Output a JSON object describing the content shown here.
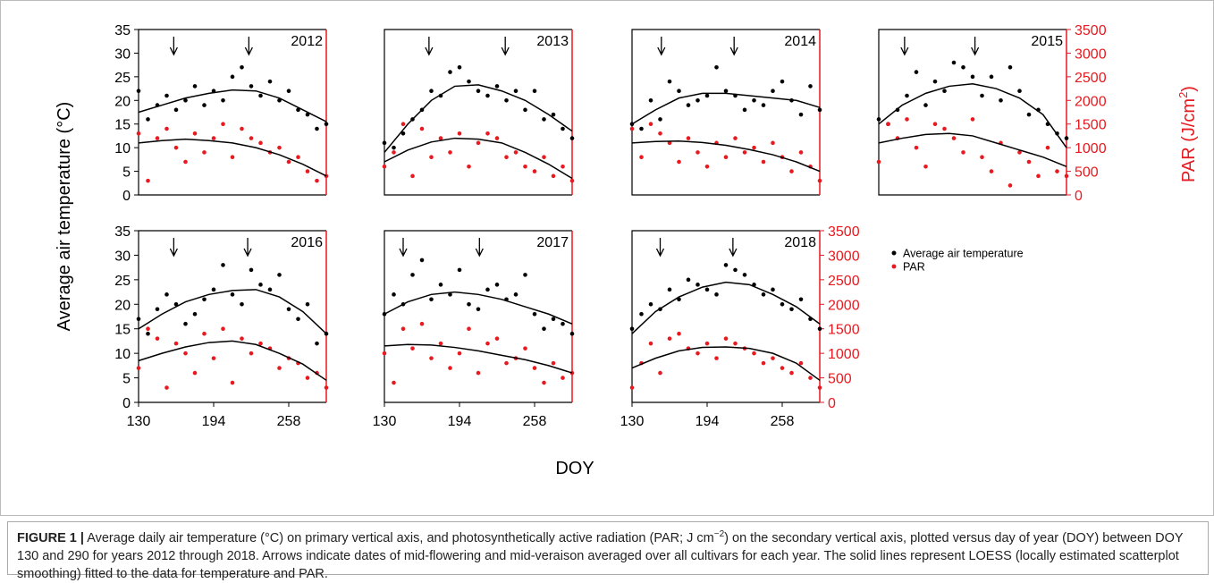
{
  "chart_data": [
    {
      "type": "scatter",
      "title": "2012",
      "xlim": [
        130,
        290
      ],
      "ylim": [
        0,
        35
      ],
      "y2lim": [
        0,
        3500
      ],
      "yticks": [
        0,
        5,
        10,
        15,
        20,
        25,
        30,
        35
      ],
      "x": [
        130,
        138,
        146,
        154,
        162,
        170,
        178,
        186,
        194,
        202,
        210,
        218,
        226,
        234,
        242,
        250,
        258,
        266,
        274,
        282,
        290
      ],
      "series": [
        {
          "name": "Average air temperature",
          "color": "#000000",
          "values": [
            22,
            16,
            19,
            21,
            18,
            20,
            23,
            19,
            22,
            20,
            25,
            27,
            23,
            21,
            24,
            20,
            22,
            18,
            17,
            14,
            15
          ]
        },
        {
          "name": "PAR",
          "color": "#e8191f",
          "axis": "y2",
          "values": [
            1300,
            300,
            1200,
            1400,
            1000,
            700,
            1300,
            900,
            1200,
            1500,
            800,
            1400,
            1200,
            1100,
            900,
            1000,
            700,
            800,
            500,
            300,
            400
          ]
        }
      ],
      "loess": {
        "x": [
          130,
          150,
          170,
          190,
          210,
          230,
          250,
          270,
          290
        ],
        "temperature": [
          17.5,
          19,
          20.5,
          21.5,
          22.2,
          22,
          20.5,
          18,
          15.5
        ],
        "par": [
          1100,
          1150,
          1180,
          1150,
          1100,
          1000,
          850,
          650,
          400
        ]
      },
      "arrows": [
        160,
        224
      ]
    },
    {
      "type": "scatter",
      "title": "2013",
      "xlim": [
        130,
        290
      ],
      "ylim": [
        0,
        35
      ],
      "y2lim": [
        0,
        3500
      ],
      "x": [
        130,
        138,
        146,
        154,
        162,
        170,
        178,
        186,
        194,
        202,
        210,
        218,
        226,
        234,
        242,
        250,
        258,
        266,
        274,
        282,
        290
      ],
      "series": [
        {
          "name": "Average air temperature",
          "color": "#000000",
          "values": [
            11,
            10,
            13,
            16,
            18,
            22,
            21,
            26,
            27,
            24,
            22,
            21,
            23,
            20,
            22,
            18,
            22,
            16,
            17,
            14,
            12
          ]
        },
        {
          "name": "PAR",
          "color": "#e8191f",
          "axis": "y2",
          "values": [
            600,
            900,
            1500,
            400,
            1400,
            800,
            1200,
            900,
            1300,
            600,
            1100,
            1300,
            1200,
            800,
            900,
            600,
            500,
            800,
            400,
            600,
            300
          ]
        }
      ],
      "loess": {
        "x": [
          130,
          150,
          170,
          190,
          210,
          230,
          250,
          270,
          290
        ],
        "temperature": [
          9,
          15,
          20,
          23,
          23.3,
          22,
          20,
          17,
          13.5
        ],
        "par": [
          700,
          950,
          1120,
          1200,
          1180,
          1100,
          900,
          650,
          350
        ]
      },
      "arrows": [
        168,
        233
      ]
    },
    {
      "type": "scatter",
      "title": "2014",
      "xlim": [
        130,
        290
      ],
      "ylim": [
        0,
        35
      ],
      "y2lim": [
        0,
        3500
      ],
      "x": [
        130,
        138,
        146,
        154,
        162,
        170,
        178,
        186,
        194,
        202,
        210,
        218,
        226,
        234,
        242,
        250,
        258,
        266,
        274,
        282,
        290
      ],
      "series": [
        {
          "name": "Average air temperature",
          "color": "#000000",
          "values": [
            15,
            14,
            20,
            16,
            24,
            22,
            19,
            20,
            21,
            27,
            22,
            21,
            18,
            20,
            19,
            22,
            24,
            20,
            17,
            23,
            18
          ]
        },
        {
          "name": "PAR",
          "color": "#e8191f",
          "axis": "y2",
          "values": [
            1400,
            800,
            1500,
            1300,
            1100,
            700,
            1200,
            900,
            600,
            1100,
            800,
            1200,
            900,
            1000,
            700,
            1100,
            800,
            500,
            900,
            600,
            300
          ]
        }
      ],
      "loess": {
        "x": [
          130,
          150,
          170,
          190,
          210,
          230,
          250,
          270,
          290
        ],
        "temperature": [
          15,
          18,
          20.5,
          21.5,
          21.5,
          21,
          20.5,
          20,
          18.5
        ],
        "par": [
          1100,
          1130,
          1140,
          1110,
          1050,
          960,
          850,
          700,
          500
        ]
      },
      "arrows": [
        155,
        217
      ]
    },
    {
      "type": "scatter",
      "title": "2015",
      "xlim": [
        130,
        290
      ],
      "ylim": [
        0,
        35
      ],
      "y2lim": [
        0,
        3500
      ],
      "y2ticks": [
        0,
        500,
        1000,
        1500,
        2000,
        2500,
        3000,
        3500
      ],
      "x": [
        130,
        138,
        146,
        154,
        162,
        170,
        178,
        186,
        194,
        202,
        210,
        218,
        226,
        234,
        242,
        250,
        258,
        266,
        274,
        282,
        290
      ],
      "series": [
        {
          "name": "Average air temperature",
          "color": "#000000",
          "values": [
            16,
            15,
            18,
            21,
            26,
            19,
            24,
            22,
            28,
            27,
            25,
            21,
            25,
            20,
            27,
            22,
            17,
            18,
            15,
            13,
            12
          ]
        },
        {
          "name": "PAR",
          "color": "#e8191f",
          "axis": "y2",
          "values": [
            700,
            1500,
            1200,
            1600,
            1000,
            600,
            1500,
            1400,
            1200,
            900,
            1600,
            800,
            500,
            1100,
            200,
            900,
            700,
            400,
            1000,
            500,
            400
          ]
        }
      ],
      "loess": {
        "x": [
          130,
          150,
          170,
          190,
          210,
          230,
          250,
          270,
          290
        ],
        "temperature": [
          15,
          19,
          21.5,
          23,
          23.5,
          22.5,
          20.5,
          17,
          10
        ],
        "par": [
          1100,
          1200,
          1280,
          1300,
          1250,
          1100,
          950,
          800,
          600
        ]
      },
      "arrows": [
        152,
        212
      ]
    },
    {
      "type": "scatter",
      "title": "2016",
      "xlim": [
        130,
        290
      ],
      "ylim": [
        0,
        35
      ],
      "y2lim": [
        0,
        3500
      ],
      "yticks": [
        0,
        5,
        10,
        15,
        20,
        25,
        30,
        35
      ],
      "xticks": [
        130,
        194,
        258
      ],
      "x": [
        130,
        138,
        146,
        154,
        162,
        170,
        178,
        186,
        194,
        202,
        210,
        218,
        226,
        234,
        242,
        250,
        258,
        266,
        274,
        282,
        290
      ],
      "series": [
        {
          "name": "Average air temperature",
          "color": "#000000",
          "values": [
            17,
            14,
            19,
            22,
            20,
            16,
            18,
            21,
            23,
            28,
            22,
            20,
            27,
            24,
            23,
            26,
            19,
            17,
            20,
            12,
            14
          ]
        },
        {
          "name": "PAR",
          "color": "#e8191f",
          "axis": "y2",
          "values": [
            700,
            1500,
            1300,
            300,
            1200,
            1000,
            600,
            1400,
            900,
            1500,
            400,
            1300,
            1000,
            1200,
            1100,
            700,
            900,
            800,
            500,
            600,
            300
          ]
        }
      ],
      "loess": {
        "x": [
          130,
          150,
          170,
          190,
          210,
          230,
          250,
          270,
          290
        ],
        "temperature": [
          15,
          18,
          20.5,
          22,
          22.8,
          23,
          21.5,
          18.5,
          14
        ],
        "par": [
          850,
          1000,
          1130,
          1220,
          1250,
          1180,
          1000,
          780,
          450
        ]
      },
      "arrows": [
        160,
        223
      ]
    },
    {
      "type": "scatter",
      "title": "2017",
      "xlim": [
        130,
        290
      ],
      "ylim": [
        0,
        35
      ],
      "y2lim": [
        0,
        3500
      ],
      "xticks": [
        130,
        194,
        258
      ],
      "x": [
        130,
        138,
        146,
        154,
        162,
        170,
        178,
        186,
        194,
        202,
        210,
        218,
        226,
        234,
        242,
        250,
        258,
        266,
        274,
        282,
        290
      ],
      "series": [
        {
          "name": "Average air temperature",
          "color": "#000000",
          "values": [
            18,
            22,
            20,
            26,
            29,
            21,
            24,
            22,
            27,
            20,
            19,
            23,
            24,
            21,
            22,
            26,
            18,
            15,
            17,
            16,
            14
          ]
        },
        {
          "name": "PAR",
          "color": "#e8191f",
          "axis": "y2",
          "values": [
            1000,
            400,
            1500,
            1100,
            1600,
            900,
            1200,
            700,
            1000,
            1500,
            600,
            1200,
            1300,
            800,
            900,
            1100,
            700,
            400,
            800,
            500,
            600
          ]
        }
      ],
      "loess": {
        "x": [
          130,
          150,
          170,
          190,
          210,
          230,
          250,
          270,
          290
        ],
        "temperature": [
          18,
          20.5,
          22,
          22.5,
          22,
          21,
          19.5,
          18,
          16
        ],
        "par": [
          1150,
          1180,
          1170,
          1120,
          1050,
          960,
          870,
          750,
          600
        ]
      },
      "arrows": [
        146,
        211
      ]
    },
    {
      "type": "scatter",
      "title": "2018",
      "xlim": [
        130,
        290
      ],
      "ylim": [
        0,
        35
      ],
      "y2lim": [
        0,
        3500
      ],
      "xticks": [
        130,
        194,
        258
      ],
      "y2ticks": [
        0,
        500,
        1000,
        1500,
        2000,
        2500,
        3000,
        3500
      ],
      "x": [
        130,
        138,
        146,
        154,
        162,
        170,
        178,
        186,
        194,
        202,
        210,
        218,
        226,
        234,
        242,
        250,
        258,
        266,
        274,
        282,
        290
      ],
      "series": [
        {
          "name": "Average air temperature",
          "color": "#000000",
          "values": [
            15,
            18,
            20,
            19,
            23,
            21,
            25,
            24,
            23,
            22,
            28,
            27,
            26,
            24,
            22,
            23,
            20,
            19,
            21,
            17,
            15
          ]
        },
        {
          "name": "PAR",
          "color": "#e8191f",
          "axis": "y2",
          "values": [
            300,
            800,
            1200,
            600,
            1300,
            1400,
            1100,
            1000,
            1200,
            900,
            1300,
            1200,
            1100,
            1000,
            800,
            900,
            700,
            600,
            800,
            500,
            300
          ]
        }
      ],
      "loess": {
        "x": [
          130,
          150,
          170,
          190,
          210,
          230,
          250,
          270,
          290
        ],
        "temperature": [
          14,
          18.5,
          21.5,
          23.5,
          24.5,
          24,
          22,
          19.5,
          16
        ],
        "par": [
          700,
          900,
          1050,
          1120,
          1130,
          1100,
          1000,
          800,
          450
        ]
      },
      "arrows": [
        154,
        216
      ]
    }
  ],
  "axis_titles": {
    "ylabel": "Average air temperature (°C)",
    "y2label": "PAR (J/cm",
    "y2label_sup": "2",
    "y2label_end": ")",
    "xlabel": "DOY"
  },
  "caption": {
    "label": "FIGURE 1 |",
    "text1": " Average daily air temperature (°C) on primary vertical axis, and photosynthetically active radiation (PAR; J cm",
    "sup": "−2",
    "text2": ") on the secondary vertical axis, plotted versus day of year (DOY) between DOY 130 and 290 for years 2012 through 2018. Arrows indicate dates of mid-flowering and mid-veraison averaged over all cultivars for each year. The solid lines represent LOESS (locally estimated scatterplot smoothing) fitted to the data for temperature and PAR."
  }
}
